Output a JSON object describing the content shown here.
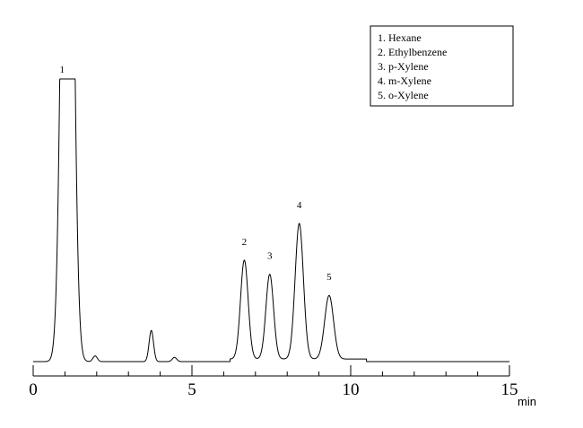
{
  "chart_data": {
    "type": "line",
    "title": "",
    "xlabel": "",
    "ylabel": "",
    "x_unit": "min",
    "xlim": [
      0,
      15
    ],
    "ylim": [
      0,
      100
    ],
    "x_ticks": [
      0,
      5,
      10,
      15
    ],
    "x_tick_labels": [
      "0",
      "5",
      "10",
      "15"
    ],
    "grid": false,
    "legend_position": "top-right",
    "legend": [
      "1. Hexane",
      "2. Ethylbenzene",
      "3. p-Xylene",
      "4. m-Xylene",
      "5. o-Xylene"
    ],
    "peaks": [
      {
        "label": "1",
        "rt": 1.08,
        "height": 100,
        "clipped": true
      },
      {
        "label": "2",
        "rt": 6.65,
        "height": 35
      },
      {
        "label": "3",
        "rt": 7.45,
        "height": 30
      },
      {
        "label": "4",
        "rt": 8.38,
        "height": 48
      },
      {
        "label": "5",
        "rt": 9.32,
        "height": 22.5
      }
    ],
    "minor_peaks": [
      {
        "rt": 1.95,
        "height": 2
      },
      {
        "rt": 3.72,
        "height": 11
      },
      {
        "rt": 4.45,
        "height": 1.5
      }
    ]
  }
}
